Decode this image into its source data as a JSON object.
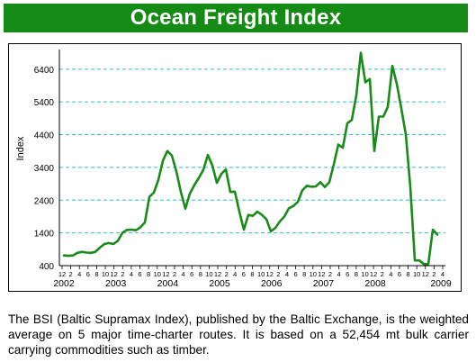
{
  "header": {
    "title": "Ocean Freight Index"
  },
  "colors": {
    "banner": "#158a15",
    "line": "#1a8a1a",
    "grid": "#33bbcc"
  },
  "caption": {
    "text": "The BSI (Baltic Supramax Index), published by the Baltic Exchange, is the weighted average on 5 major time-charter routes. It is based on a 52,454 mt bulk carrier carrying commodities such as timber."
  },
  "chart_data": {
    "type": "line",
    "title": "",
    "xlabel": "",
    "ylabel": "Index",
    "ylim": [
      400,
      7000
    ],
    "yticks": [
      400,
      1400,
      2400,
      3400,
      4400,
      5400,
      6400
    ],
    "grid": "horizontal dashed",
    "x_month_ticks": [
      "12",
      "2",
      "4",
      "6",
      "8",
      "10",
      "12",
      "2",
      "4",
      "6",
      "8",
      "10",
      "12",
      "2",
      "4",
      "6",
      "8",
      "10",
      "12",
      "2",
      "4",
      "6",
      "8",
      "10",
      "12",
      "2",
      "4",
      "6",
      "8",
      "10",
      "12",
      "2",
      "4",
      "6",
      "8",
      "10",
      "12",
      "2",
      "4",
      "6",
      "8",
      "10",
      "12",
      "2",
      "4"
    ],
    "x_year_labels": [
      "2002",
      "2003",
      "2004",
      "2005",
      "2006",
      "2007",
      "2008",
      "2009"
    ],
    "series": [
      {
        "values": [
          710,
          700,
          710,
          790,
          820,
          800,
          790,
          820,
          950,
          1060,
          1090,
          1060,
          1160,
          1400,
          1490,
          1500,
          1480,
          1570,
          1720,
          2500,
          2630,
          3020,
          3600,
          3900,
          3760,
          3280,
          2650,
          2140,
          2600,
          2860,
          3080,
          3330,
          3780,
          3460,
          2930,
          3200,
          3340,
          2650,
          2660,
          2050,
          1500,
          1950,
          1920,
          2050,
          1950,
          1820,
          1450,
          1550,
          1750,
          1900,
          2150,
          2220,
          2350,
          2700,
          2840,
          2810,
          2820,
          2950,
          2800,
          2950,
          3500,
          4100,
          4000,
          4750,
          4850,
          5600,
          6900,
          6000,
          6100,
          3900,
          4950,
          4950,
          5250,
          6500,
          5950,
          5200,
          4400,
          2800,
          560,
          560,
          450,
          450,
          1500,
          1350
        ]
      }
    ]
  }
}
